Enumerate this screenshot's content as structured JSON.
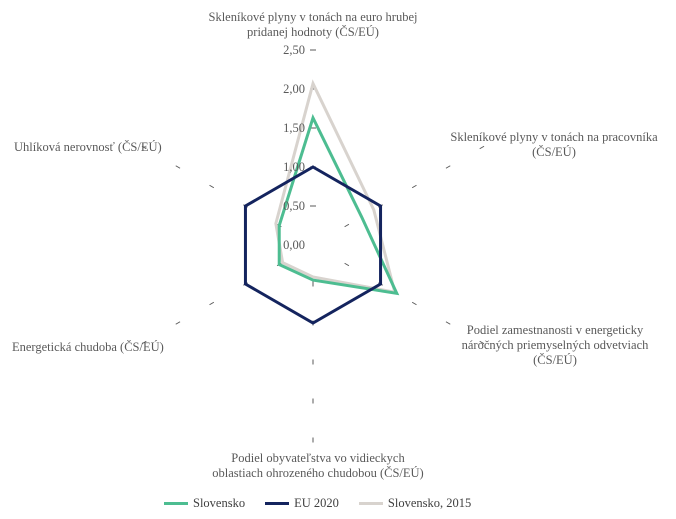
{
  "chart_data": {
    "type": "radar",
    "title": "",
    "axes": [
      "Skleníkové plyny v tonách na euro hrubej pridanej hodnoty (ČS/EÚ)",
      "Skleníkové plyny v tonách na pracovníka (ČS/EÚ)",
      "Podiel zamestnanosti v energeticky náročných priemyselných odvetviach (ČS/EÚ)",
      "Podiel obyvateľstva vo vidieckych oblastiach ohrozeného chudobou (ČS/EÚ)",
      "Energetická chudoba (ČS/EÚ)",
      "Uhlíková nerovnosť (ČS/EÚ)"
    ],
    "axis_labels": {
      "a0_l1": "Skleníkové plyny v tonách na euro hrubej",
      "a0_l2": "pridanej hodnoty (ČS/EÚ)",
      "a1_l1": "Skleníkové plyny v tonách na pracovníka",
      "a1_l2": "(ČS/EÚ)",
      "a2_l1": "Podiel zamestnanosti v energeticky",
      "a2_l2": "náročných priemyselných odvetviach",
      "a2_l3": "(ČS/EÚ)",
      "a3_l1": "Podiel obyvateľstva vo vidieckych",
      "a3_l2": "oblastiach ohrozeného chudobou (ČS/EÚ)",
      "a4_l1": "Energetická chudoba (ČS/EÚ)",
      "a5_l1": "Uhlíková nerovnosť (ČS/EÚ)"
    },
    "ticks": [
      "0,00",
      "0,50",
      "1,00",
      "1,50",
      "2,00",
      "2,50"
    ],
    "tick_values": [
      0,
      0.5,
      1,
      1.5,
      2,
      2.5
    ],
    "range": [
      0,
      2.5
    ],
    "series": [
      {
        "name": "Slovensko",
        "color": "#4dbd91",
        "values": [
          1.63,
          0.72,
          1.24,
          0.45,
          0.5,
          0.5
        ]
      },
      {
        "name": "EU 2020",
        "color": "#14245e",
        "values": [
          1.0,
          1.0,
          1.0,
          1.0,
          1.0,
          1.0
        ]
      },
      {
        "name": "Slovensko, 2015",
        "color": "#d8d3ce",
        "values": [
          2.07,
          0.9,
          1.21,
          0.41,
          0.45,
          0.55
        ]
      }
    ],
    "legend_position": "bottom"
  }
}
